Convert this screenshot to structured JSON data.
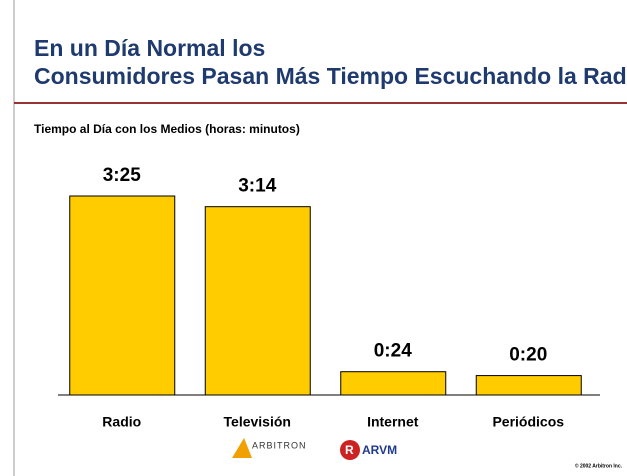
{
  "chart_data": {
    "type": "bar",
    "title": "En un Día Normal los Consumidores Pasan Más Tiempo Escuchando la Radio",
    "subtitle": "Tiempo al Día con los Medios (horas: minutos)",
    "categories": [
      "Radio",
      "Televisión",
      "Internet",
      "Periódicos"
    ],
    "values": [
      205,
      194,
      24,
      20
    ],
    "value_labels": [
      "3:25",
      "3:14",
      "0:24",
      "0:20"
    ],
    "color": "#ffcc00"
  },
  "footer": {
    "logos": [
      "ARBITRON",
      "ARVM"
    ],
    "copyright": "© 2002 Arbitron Inc."
  }
}
